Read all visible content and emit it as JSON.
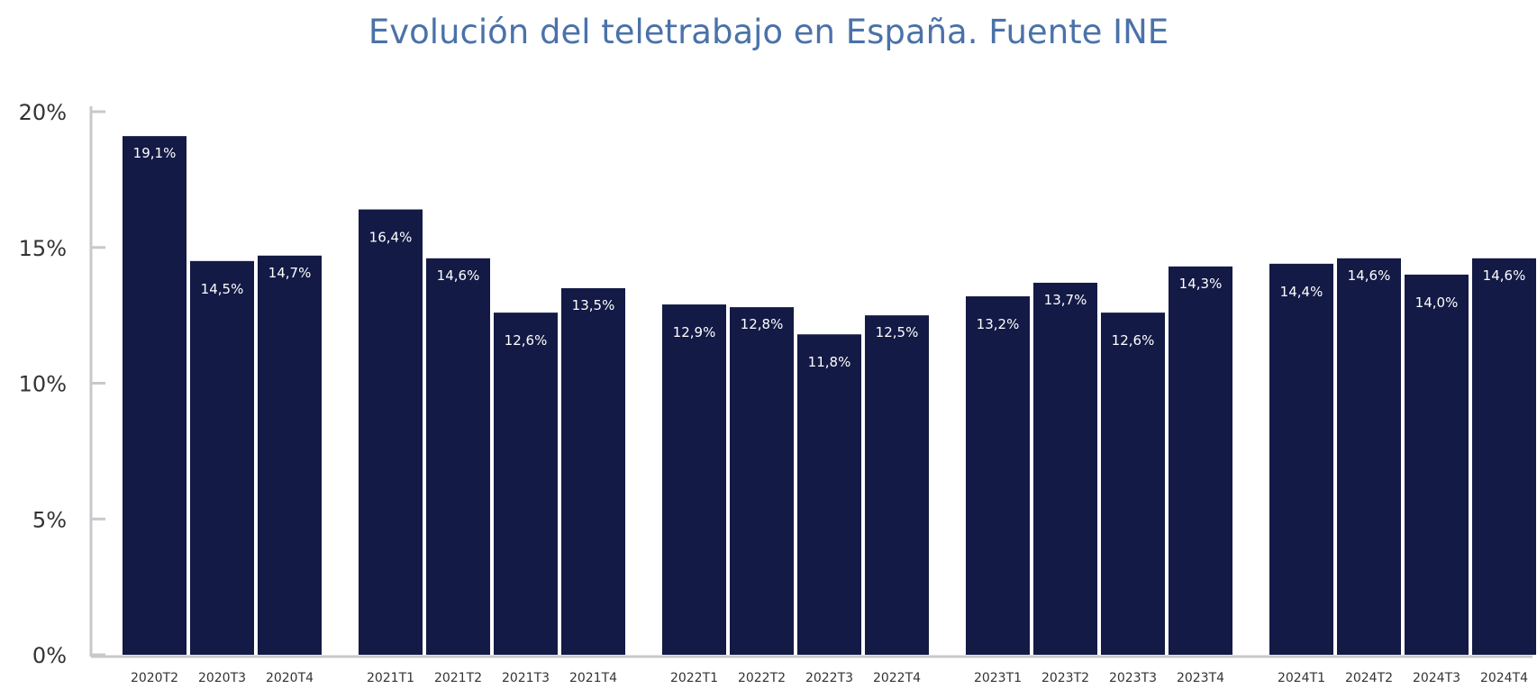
{
  "chart_data": {
    "type": "bar",
    "title": "Evolución del teletrabajo en España. Fuente INE",
    "xlabel": "",
    "ylabel": "",
    "ylim": [
      0,
      20
    ],
    "yticks": [
      0,
      5,
      10,
      15,
      20
    ],
    "ytick_labels": [
      "0%",
      "5%",
      "10%",
      "15%",
      "20%"
    ],
    "grid": false,
    "legend": "none",
    "bar_color": "#131a45",
    "groups": [
      [
        "2020T2",
        "2020T3",
        "2020T4"
      ],
      [
        "2021T1",
        "2021T2",
        "2021T3",
        "2021T4"
      ],
      [
        "2022T1",
        "2022T2",
        "2022T3",
        "2022T4"
      ],
      [
        "2023T1",
        "2023T2",
        "2023T3",
        "2023T4"
      ],
      [
        "2024T1",
        "2024T2",
        "2024T3",
        "2024T4"
      ]
    ],
    "categories": [
      "2020T2",
      "2020T3",
      "2020T4",
      "2021T1",
      "2021T2",
      "2021T3",
      "2021T4",
      "2022T1",
      "2022T2",
      "2022T3",
      "2022T4",
      "2023T1",
      "2023T2",
      "2023T3",
      "2023T4",
      "2024T1",
      "2024T2",
      "2024T3",
      "2024T4"
    ],
    "values": [
      19.1,
      14.5,
      14.7,
      16.4,
      14.6,
      12.6,
      13.5,
      12.9,
      12.8,
      11.8,
      12.5,
      13.2,
      13.7,
      12.6,
      14.3,
      14.4,
      14.6,
      14.0,
      14.6
    ],
    "data_labels": [
      "19,1%",
      "14,5%",
      "14,7%",
      "16,4%",
      "14,6%",
      "12,6%",
      "13,5%",
      "12,9%",
      "12,8%",
      "11,8%",
      "12,5%",
      "13,2%",
      "13,7%",
      "12,6%",
      "14,3%",
      "14,4%",
      "14,6%",
      "14,0%",
      "14,6%"
    ]
  }
}
